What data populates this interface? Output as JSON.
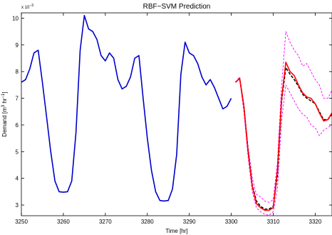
{
  "chart_data": {
    "type": "line",
    "title": "RBF−SVM Prediction",
    "xlabel": "Time [hr]",
    "ylabel_parts": {
      "prefix": "Demand [m",
      "exp1": "3",
      "mid": " hr",
      "exp2": "−1",
      "suffix": "]"
    },
    "y_multiplier": {
      "base": "x 10",
      "exp": "−3"
    },
    "xlim": [
      3250,
      3324
    ],
    "ylim": [
      2.6,
      10.2
    ],
    "xticks": [
      3250,
      3260,
      3270,
      3280,
      3290,
      3300,
      3310,
      3320
    ],
    "yticks": [
      3,
      4,
      5,
      6,
      7,
      8,
      9,
      10
    ],
    "grid": false,
    "series": [
      {
        "id": "history",
        "color": "#0000cc",
        "width": 1.6,
        "dash": "",
        "x": [
          3250,
          3251,
          3252,
          3253,
          3254,
          3255,
          3256,
          3257,
          3258,
          3259,
          3260,
          3261,
          3262,
          3263,
          3264,
          3265,
          3266,
          3267,
          3268,
          3269,
          3270,
          3271,
          3272,
          3273,
          3274,
          3275,
          3276,
          3277,
          3278,
          3279,
          3280,
          3281,
          3282,
          3283,
          3284,
          3285,
          3286,
          3287,
          3288,
          3289,
          3290,
          3291,
          3292,
          3293,
          3294,
          3295,
          3296,
          3297,
          3298,
          3299,
          3300
        ],
        "values": [
          7.6,
          7.7,
          8.1,
          8.7,
          8.8,
          7.6,
          6.3,
          5.0,
          3.9,
          3.5,
          3.48,
          3.5,
          3.9,
          5.7,
          8.8,
          10.1,
          9.6,
          9.5,
          9.2,
          8.6,
          8.4,
          8.7,
          8.5,
          7.7,
          7.35,
          7.45,
          7.8,
          8.5,
          8.6,
          7.0,
          5.5,
          4.3,
          3.5,
          3.17,
          3.15,
          3.17,
          3.6,
          4.9,
          7.9,
          9.1,
          8.7,
          8.6,
          8.3,
          7.8,
          7.5,
          7.7,
          7.4,
          7.0,
          6.6,
          6.7,
          7.0
        ]
      },
      {
        "id": "upper-bound",
        "color": "#ff00ff",
        "width": 0.9,
        "dash": "3,2",
        "x": [
          3301,
          3302,
          3303,
          3304,
          3305,
          3306,
          3307,
          3308,
          3309,
          3310,
          3311,
          3312,
          3313,
          3314,
          3315,
          3316,
          3317,
          3318,
          3319,
          3320,
          3321,
          3322,
          3323,
          3324
        ],
        "values": [
          7.6,
          7.8,
          6.8,
          5.2,
          4.0,
          3.4,
          3.3,
          3.15,
          3.1,
          3.2,
          4.6,
          7.5,
          9.5,
          9.1,
          8.8,
          8.6,
          8.2,
          8.3,
          8.0,
          7.7,
          7.5,
          7.0,
          7.0,
          7.3
        ]
      },
      {
        "id": "lower-bound",
        "color": "#ff00ff",
        "width": 0.9,
        "dash": "3,2",
        "x": [
          3301,
          3302,
          3303,
          3304,
          3305,
          3306,
          3307,
          3308,
          3309,
          3310,
          3311,
          3312,
          3313,
          3314,
          3315,
          3316,
          3317,
          3318,
          3319,
          3320,
          3321,
          3322,
          3323,
          3324
        ],
        "values": [
          7.6,
          7.7,
          6.5,
          4.8,
          3.5,
          2.9,
          2.75,
          2.65,
          2.62,
          2.75,
          3.6,
          6.2,
          7.5,
          7.2,
          6.9,
          6.6,
          6.4,
          6.3,
          6.0,
          5.9,
          5.6,
          5.8,
          5.9,
          6.0
        ]
      },
      {
        "id": "prediction",
        "color": "#000000",
        "width": 1.5,
        "dash": "4,2",
        "x": [
          3301,
          3302,
          3303,
          3304,
          3305,
          3306,
          3307,
          3308,
          3309,
          3310,
          3311,
          3312,
          3313,
          3314,
          3315,
          3316,
          3317,
          3318,
          3319,
          3320,
          3321,
          3322,
          3323,
          3324
        ],
        "values": [
          7.6,
          7.75,
          6.7,
          5.05,
          3.75,
          3.15,
          2.95,
          2.85,
          2.85,
          2.95,
          4.1,
          6.9,
          8.15,
          7.9,
          7.7,
          7.45,
          7.15,
          7.0,
          6.9,
          6.8,
          6.5,
          6.2,
          6.2,
          6.4
        ]
      },
      {
        "id": "actual",
        "color": "#ff0000",
        "width": 1.6,
        "dash": "",
        "x": [
          3301,
          3302,
          3303,
          3304,
          3305,
          3306,
          3307,
          3308,
          3309,
          3310,
          3311,
          3312,
          3313,
          3314,
          3315,
          3316,
          3317,
          3318,
          3319,
          3320,
          3321,
          3322,
          3323,
          3324
        ],
        "values": [
          7.6,
          7.75,
          6.7,
          5.0,
          3.7,
          3.05,
          2.9,
          2.8,
          2.8,
          2.9,
          4.3,
          7.0,
          8.35,
          8.0,
          7.85,
          7.5,
          7.2,
          7.05,
          7.0,
          6.8,
          6.45,
          6.15,
          6.2,
          6.45
        ]
      }
    ]
  }
}
